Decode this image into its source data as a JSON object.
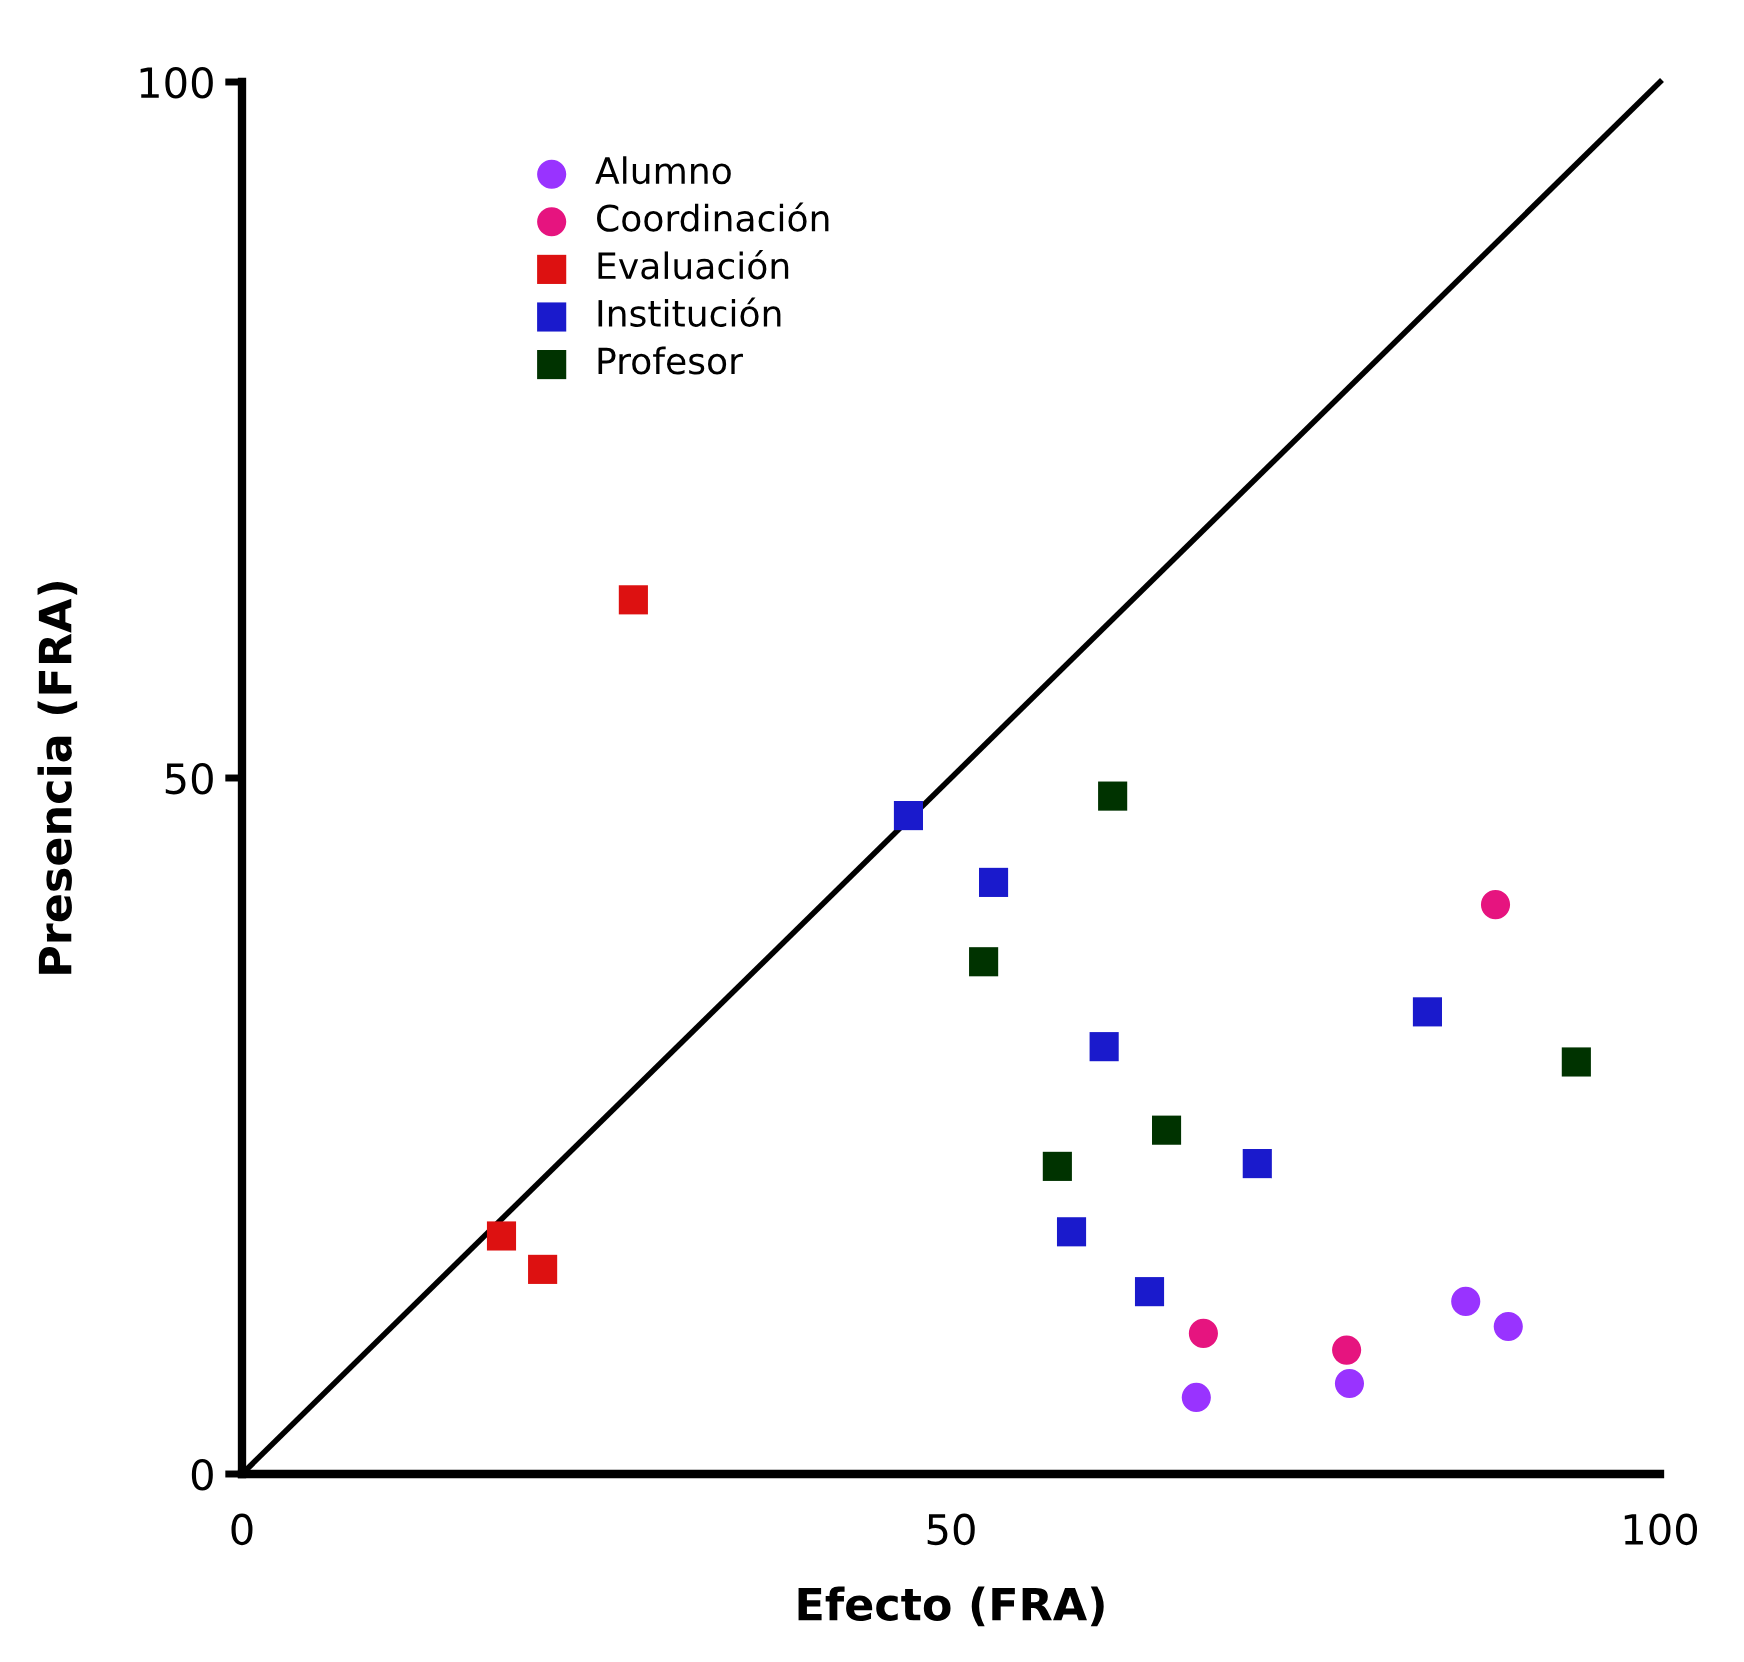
{
  "chart_data": {
    "type": "scatter",
    "xlabel": "Efecto (FRA)",
    "ylabel": "Presencia (FRA)",
    "xlim": [
      0,
      100
    ],
    "ylim": [
      0,
      100
    ],
    "xticks": [
      0,
      50,
      100
    ],
    "yticks": [
      0,
      50,
      100
    ],
    "grid": false,
    "legend": "top left",
    "series": [
      {
        "name": "Alumno",
        "color": "#9933ff",
        "marker": "circle",
        "x": [
          67.3,
          78.1,
          86.3,
          89.3
        ],
        "values": [
          5.5,
          6.5,
          12.4,
          10.6
        ]
      },
      {
        "name": "Coordinación",
        "color": "#e6147f",
        "marker": "circle",
        "x": [
          67.8,
          77.9,
          88.4
        ],
        "values": [
          10.1,
          8.9,
          40.9
        ]
      },
      {
        "name": "Evaluación",
        "color": "#dd1111",
        "marker": "square",
        "x": [
          27.6,
          18.3,
          21.2
        ],
        "values": [
          62.8,
          17.1,
          14.7
        ]
      },
      {
        "name": "Institución",
        "color": "#1a1acc",
        "marker": "square",
        "x": [
          47.0,
          53.0,
          60.8,
          58.5,
          64.0,
          71.6,
          83.6
        ],
        "values": [
          47.3,
          42.5,
          30.7,
          17.4,
          13.1,
          22.3,
          33.2
        ]
      },
      {
        "name": "Profesor",
        "color": "#003300",
        "marker": "square",
        "x": [
          61.4,
          52.3,
          57.5,
          65.2,
          94.1
        ],
        "values": [
          48.7,
          36.8,
          22.1,
          24.7,
          29.6
        ]
      },
      {
        "type": "line",
        "color": "#000000",
        "marker": "none",
        "line_style": "solid",
        "x": [
          0,
          100
        ],
        "values": [
          0,
          100
        ]
      }
    ]
  }
}
